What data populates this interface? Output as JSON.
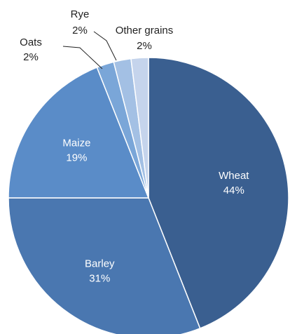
{
  "chart_data": {
    "type": "pie",
    "title": "",
    "slices": [
      {
        "label": "Wheat",
        "value": 44,
        "display": "44%",
        "color": "#3a5f90",
        "labelStyle": "inside"
      },
      {
        "label": "Barley",
        "value": 31,
        "display": "31%",
        "color": "#4a77b0",
        "labelStyle": "inside"
      },
      {
        "label": "Maize",
        "value": 19,
        "display": "19%",
        "color": "#5a8cc8",
        "labelStyle": "inside"
      },
      {
        "label": "Oats",
        "value": 2,
        "display": "2%",
        "color": "#7aa6d8",
        "labelStyle": "outside"
      },
      {
        "label": "Rye",
        "value": 2,
        "display": "2%",
        "color": "#a3c0e4",
        "labelStyle": "outside"
      },
      {
        "label": "Other grains",
        "value": 2,
        "display": "2%",
        "color": "#c5d4ec",
        "labelStyle": "outside"
      }
    ],
    "start_angle_deg": 0,
    "direction": "clockwise",
    "legend": "none"
  }
}
